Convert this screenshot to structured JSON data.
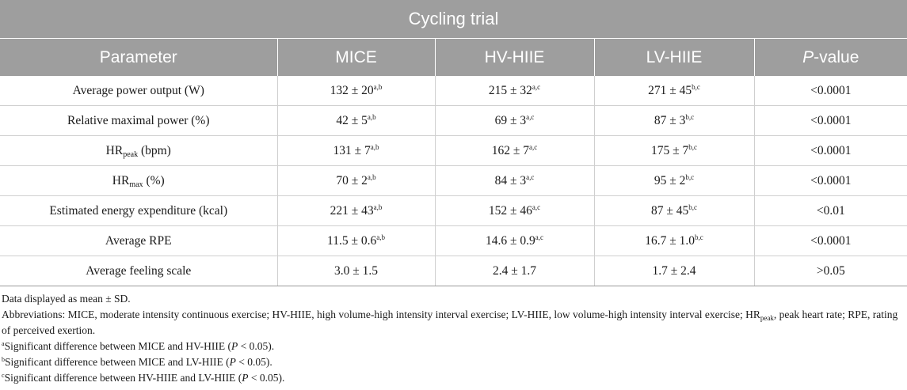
{
  "table": {
    "title": "Cycling trial",
    "headers": {
      "parameter": "Parameter",
      "mice": "MICE",
      "hv_hiie": "HV-HIIE",
      "lv_hiie": "LV-HIIE",
      "p_italic": "P",
      "p_rest": "-value"
    },
    "rows": [
      {
        "label": "Average power output (W)",
        "mice": "132 ± 20",
        "mice_sup": "a,b",
        "hv": "215 ± 32",
        "hv_sup": "a,c",
        "lv": "271 ± 45",
        "lv_sup": "b,c",
        "p": "<0.0001"
      },
      {
        "label": "Relative maximal power (%)",
        "mice": "42 ± 5",
        "mice_sup": "a,b",
        "hv": "69 ± 3",
        "hv_sup": "a,c",
        "lv": "87 ± 3",
        "lv_sup": "b,c",
        "p": "<0.0001"
      },
      {
        "label_base": "HR",
        "label_sub": "peak",
        "label_rest": " (bpm)",
        "mice": "131 ± 7",
        "mice_sup": "a,b",
        "hv": "162 ± 7",
        "hv_sup": "a,c",
        "lv": "175 ± 7",
        "lv_sup": "b,c",
        "p": "<0.0001"
      },
      {
        "label_base": "HR",
        "label_sub": "max",
        "label_rest": " (%)",
        "mice": "70 ± 2",
        "mice_sup": "a,b",
        "hv": "84 ± 3",
        "hv_sup": "a,c",
        "lv": "95 ± 2",
        "lv_sup": "b,c",
        "p": "<0.0001"
      },
      {
        "label": "Estimated energy expenditure (kcal)",
        "mice": "221 ± 43",
        "mice_sup": "a,b",
        "hv": "152 ± 46",
        "hv_sup": "a,c",
        "lv": "87 ± 45",
        "lv_sup": "b,c",
        "p": "<0.01"
      },
      {
        "label": "Average RPE",
        "mice": "11.5 ± 0.6",
        "mice_sup": "a,b",
        "hv": "14.6 ± 0.9",
        "hv_sup": "a,c",
        "lv": "16.7 ± 1.0",
        "lv_sup": "b,c",
        "p": "<0.0001"
      },
      {
        "label": "Average feeling scale",
        "mice": "3.0 ± 1.5",
        "hv": "2.4 ± 1.7",
        "lv": "1.7 ± 2.4",
        "p": ">0.05"
      }
    ]
  },
  "notes": {
    "data_displayed": "Data displayed as mean ± SD.",
    "abbrev_1": "Abbreviations: MICE, moderate intensity continuous exercise; HV-HIIE, high volume-high intensity interval exercise; LV-HIIE, low volume-high intensity interval exercise; HR",
    "abbrev_sub": "peak",
    "abbrev_2": ", peak heart rate; RPE, rating of perceived exertion.",
    "fn_a_mark": "a",
    "fn_a_pre": "Significant difference between MICE and HV-HIIE (",
    "fn_a_p": "P",
    "fn_a_post": " < 0.05).",
    "fn_b_mark": "b",
    "fn_b_pre": "Significant difference between MICE and LV-HIIE (",
    "fn_b_p": "P",
    "fn_b_post": " < 0.05).",
    "fn_c_mark": "c",
    "fn_c_pre": "Significant difference between HV-HIIE and LV-HIIE (",
    "fn_c_p": "P",
    "fn_c_post": " < 0.05)."
  }
}
